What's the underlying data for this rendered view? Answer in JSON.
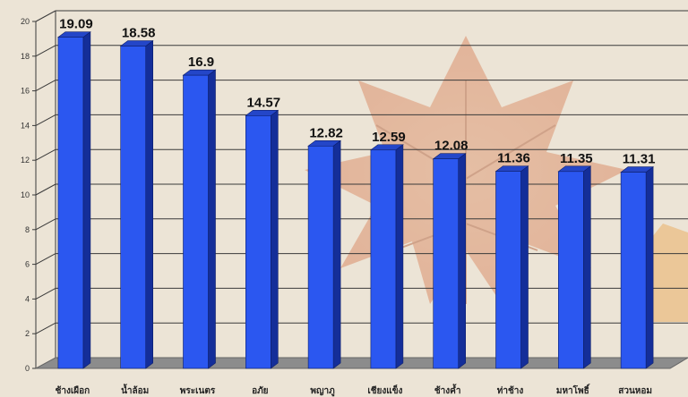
{
  "chart_data": {
    "type": "bar",
    "style": "3d",
    "categories": [
      "ช้างเผือก",
      "น้ำล้อม",
      "พระเนตร",
      "อภัย",
      "พญาภู",
      "เชียงแข็ง",
      "ช้างค้ำ",
      "ท่าช้าง",
      "มหาโพธิ์",
      "สวนหอม"
    ],
    "values": [
      19.09,
      18.58,
      16.9,
      14.57,
      12.82,
      12.59,
      12.08,
      11.36,
      11.35,
      11.31
    ],
    "data_labels": [
      "19.09",
      "18.58",
      "16.9",
      "14.57",
      "12.82",
      "12.59",
      "12.08",
      "11.36",
      "11.35",
      "11.31"
    ],
    "y_ticks": [
      "0",
      "2",
      "4",
      "6",
      "8",
      "10",
      "12",
      "14",
      "16",
      "18",
      "20"
    ],
    "ylim": [
      0,
      20
    ],
    "grid": true,
    "legend": "none",
    "colors": {
      "bar_front": "#2b57f0",
      "bar_side": "#142e99",
      "bar_top": "#2446c8",
      "floor": "#8c8c8c",
      "grid": "#3a3a3a"
    }
  }
}
